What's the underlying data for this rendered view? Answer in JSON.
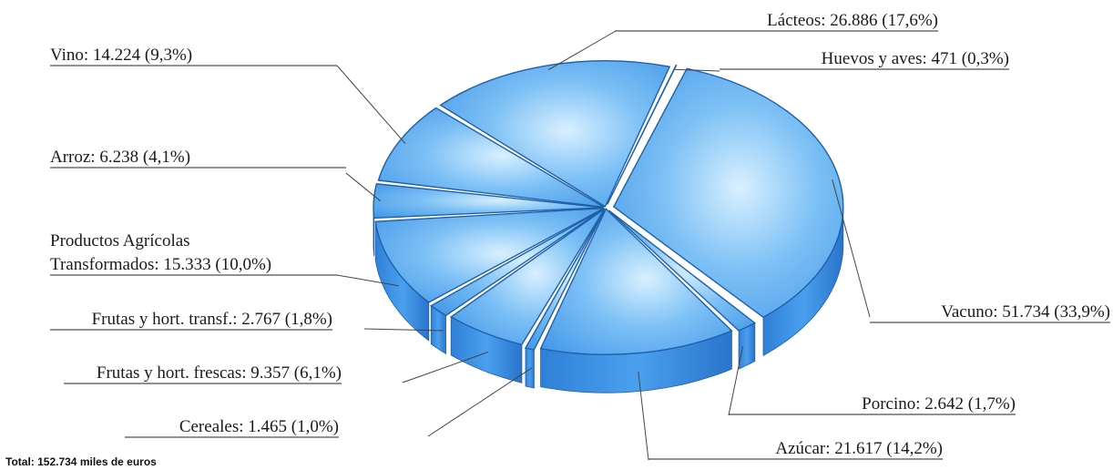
{
  "chart_data": {
    "type": "pie",
    "total_label": "Total: 152.734 miles de euros",
    "slices": [
      {
        "name": "Vacuno",
        "value": 51734,
        "percent": 33.9,
        "label": "Vacuno: 51.734 (33,9%)"
      },
      {
        "name": "Porcino",
        "value": 2642,
        "percent": 1.7,
        "label": "Porcino: 2.642 (1,7%)"
      },
      {
        "name": "Azúcar",
        "value": 21617,
        "percent": 14.2,
        "label": "Azúcar: 21.617 (14,2%)"
      },
      {
        "name": "Cereales",
        "value": 1465,
        "percent": 1.0,
        "label": "Cereales: 1.465 (1,0%)"
      },
      {
        "name": "Frutas y hort. frescas",
        "value": 9357,
        "percent": 6.1,
        "label": "Frutas y hort. frescas: 9.357 (6,1%)"
      },
      {
        "name": "Frutas y hort. transf.",
        "value": 2767,
        "percent": 1.8,
        "label": "Frutas y hort. transf.: 2.767 (1,8%)"
      },
      {
        "name": "Productos Agrícolas Transformados",
        "value": 15333,
        "percent": 10.0,
        "label_lines": [
          "Productos Agrícolas",
          "Transformados: 15.333 (10,0%)"
        ]
      },
      {
        "name": "Arroz",
        "value": 6238,
        "percent": 4.1,
        "label": "Arroz: 6.238 (4,1%)"
      },
      {
        "name": "Vino",
        "value": 14224,
        "percent": 9.3,
        "label": "Vino: 14.224 (9,3%)"
      },
      {
        "name": "Lácteos",
        "value": 26886,
        "percent": 17.6,
        "label": "Lácteos: 26.886 (17,6%)"
      },
      {
        "name": "Huevos y aves",
        "value": 471,
        "percent": 0.3,
        "label": "Huevos y aves: 471 (0,3%)"
      }
    ],
    "colors": {
      "top": "#5aaaf0",
      "top_light": "#d8f0ff",
      "side": "#3a8fe6",
      "side_dark": "#2c78d0",
      "edge": "#1f5fa8"
    }
  }
}
